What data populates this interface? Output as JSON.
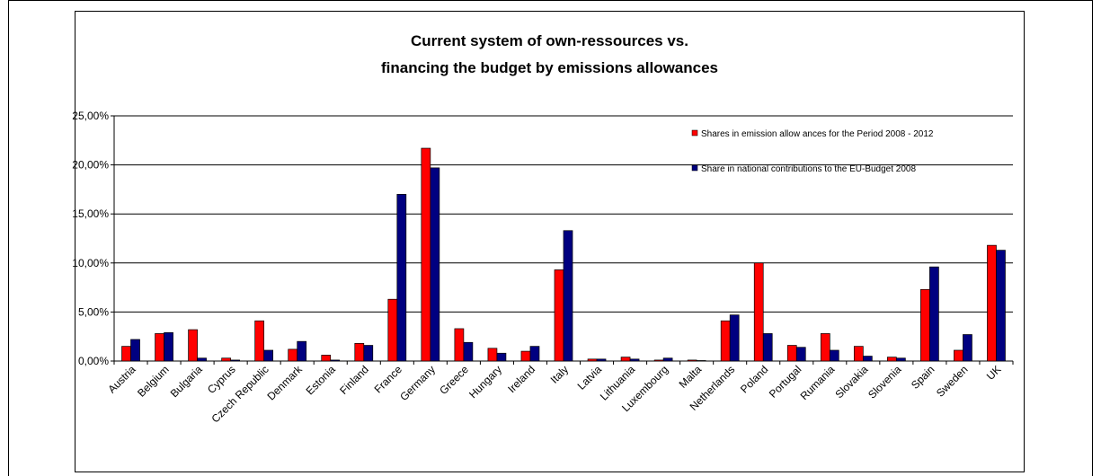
{
  "chart_data": {
    "type": "bar",
    "title_lines": [
      "Current system of own-ressources vs.",
      "financing the budget by emissions allowances"
    ],
    "categories": [
      "Austria",
      "Belgium",
      "Bulgaria",
      "Cyprus",
      "Czech Republic",
      "Denmark",
      "Estonia",
      "Finland",
      "France",
      "Germany",
      "Greece",
      "Hungary",
      "Ireland",
      "Italy",
      "Latvia",
      "Lithuania",
      "Luxembourg",
      "Malta",
      "Netherlands",
      "Poland",
      "Portugal",
      "Rumania",
      "Slovakia",
      "Slovenia",
      "Spain",
      "Sweden",
      "UK"
    ],
    "series": [
      {
        "name": "Shares in emission allow ances for the Period 2008 - 2012",
        "color": "#ff0000",
        "values": [
          1.5,
          2.8,
          3.2,
          0.3,
          4.1,
          1.2,
          0.6,
          1.8,
          6.3,
          21.7,
          3.3,
          1.3,
          1.0,
          9.3,
          0.2,
          0.4,
          0.1,
          0.1,
          4.1,
          10.0,
          1.6,
          2.8,
          1.5,
          0.4,
          7.3,
          1.1,
          11.8
        ]
      },
      {
        "name": "Share in national contributions to the EU-Budget 2008",
        "color": "#000080",
        "values": [
          2.2,
          2.9,
          0.3,
          0.1,
          1.1,
          2.0,
          0.1,
          1.6,
          17.0,
          19.7,
          1.9,
          0.8,
          1.5,
          13.3,
          0.2,
          0.2,
          0.3,
          0.05,
          4.7,
          2.8,
          1.4,
          1.1,
          0.5,
          0.3,
          9.6,
          2.7,
          11.3
        ]
      }
    ],
    "y_ticks": [
      "0,00%",
      "5,00%",
      "10,00%",
      "15,00%",
      "20,00%",
      "25,00%"
    ],
    "ylim": [
      0,
      25
    ],
    "grid": true,
    "legend_position": "top-right, inside plot"
  }
}
